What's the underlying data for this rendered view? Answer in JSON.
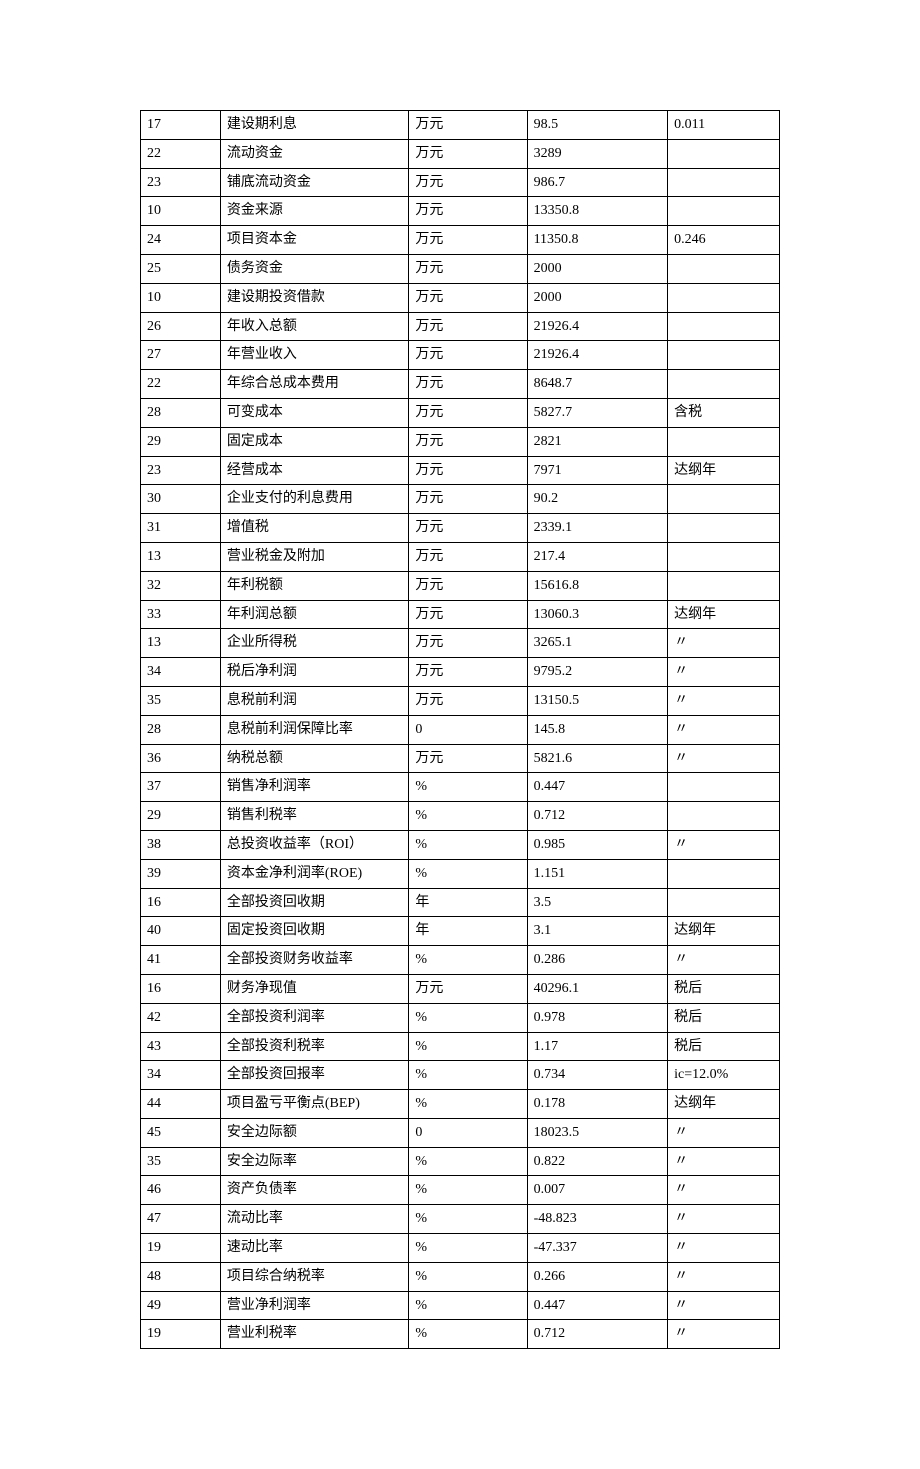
{
  "table": {
    "background_color": "#ffffff",
    "border_color": "#000000",
    "font_family": "SimSun",
    "font_size": 14,
    "column_widths_pct": [
      12.5,
      29.5,
      18.5,
      22,
      17.5
    ],
    "rows": [
      [
        "17",
        "建设期利息",
        "万元",
        "98.5",
        "0.011"
      ],
      [
        "22",
        "流动资金",
        "万元",
        "3289",
        ""
      ],
      [
        "23",
        "铺底流动资金",
        "万元",
        "986.7",
        ""
      ],
      [
        "10",
        "资金来源",
        "万元",
        "13350.8",
        ""
      ],
      [
        "24",
        "项目资本金",
        "万元",
        "11350.8",
        "0.246"
      ],
      [
        "25",
        "债务资金",
        "万元",
        "2000",
        ""
      ],
      [
        "10",
        "建设期投资借款",
        "万元",
        "2000",
        ""
      ],
      [
        "26",
        "年收入总额",
        "万元",
        "21926.4",
        ""
      ],
      [
        "27",
        "年营业收入",
        "万元",
        "21926.4",
        ""
      ],
      [
        "22",
        "年综合总成本费用",
        "万元",
        "8648.7",
        ""
      ],
      [
        "28",
        "可变成本",
        "万元",
        "5827.7",
        "含税"
      ],
      [
        "29",
        "固定成本",
        "万元",
        "2821",
        ""
      ],
      [
        "23",
        "经营成本",
        "万元",
        "7971",
        "达纲年"
      ],
      [
        "30",
        "企业支付的利息费用",
        "万元",
        "90.2",
        ""
      ],
      [
        "31",
        "增值税",
        "万元",
        "2339.1",
        ""
      ],
      [
        "13",
        "营业税金及附加",
        "万元",
        "217.4",
        ""
      ],
      [
        "32",
        "年利税额",
        "万元",
        "15616.8",
        ""
      ],
      [
        "33",
        "年利润总额",
        "万元",
        "13060.3",
        "达纲年"
      ],
      [
        "13",
        "企业所得税",
        "万元",
        "3265.1",
        "〃"
      ],
      [
        "34",
        "税后净利润",
        "万元",
        "9795.2",
        "〃"
      ],
      [
        "35",
        "息税前利润",
        "万元",
        "13150.5",
        "〃"
      ],
      [
        "28",
        "息税前利润保障比率",
        "0",
        "145.8",
        "〃"
      ],
      [
        "36",
        "纳税总额",
        "万元",
        "5821.6",
        "〃"
      ],
      [
        "37",
        "销售净利润率",
        "%",
        "0.447",
        ""
      ],
      [
        "29",
        "销售利税率",
        "%",
        "0.712",
        ""
      ],
      [
        "38",
        "总投资收益率（ROI）",
        "%",
        "0.985",
        "〃"
      ],
      [
        "39",
        "资本金净利润率(ROE)",
        "%",
        "1.151",
        ""
      ],
      [
        "16",
        "全部投资回收期",
        "年",
        "3.5",
        ""
      ],
      [
        "40",
        "固定投资回收期",
        "年",
        "3.1",
        "达纲年"
      ],
      [
        "41",
        "全部投资财务收益率",
        "%",
        "0.286",
        "〃"
      ],
      [
        "16",
        "财务净现值",
        "万元",
        "40296.1",
        "税后"
      ],
      [
        "42",
        "全部投资利润率",
        "%",
        "0.978",
        "税后"
      ],
      [
        "43",
        "全部投资利税率",
        "%",
        "1.17",
        "税后"
      ],
      [
        "34",
        "全部投资回报率",
        "%",
        "0.734",
        "ic=12.0%"
      ],
      [
        "44",
        "项目盈亏平衡点(BEP)",
        "%",
        "0.178",
        "达纲年"
      ],
      [
        "45",
        "安全边际额",
        "0",
        "18023.5",
        "〃"
      ],
      [
        "35",
        "安全边际率",
        "%",
        "0.822",
        "〃"
      ],
      [
        "46",
        "资产负债率",
        "%",
        "0.007",
        "〃"
      ],
      [
        "47",
        "流动比率",
        "%",
        "-48.823",
        "〃"
      ],
      [
        "19",
        "速动比率",
        "%",
        "-47.337",
        "〃"
      ],
      [
        "48",
        "项目综合纳税率",
        "%",
        "0.266",
        "〃"
      ],
      [
        "49",
        "营业净利润率",
        "%",
        "0.447",
        "〃"
      ],
      [
        "19",
        "营业利税率",
        "%",
        "0.712",
        "〃"
      ]
    ]
  }
}
